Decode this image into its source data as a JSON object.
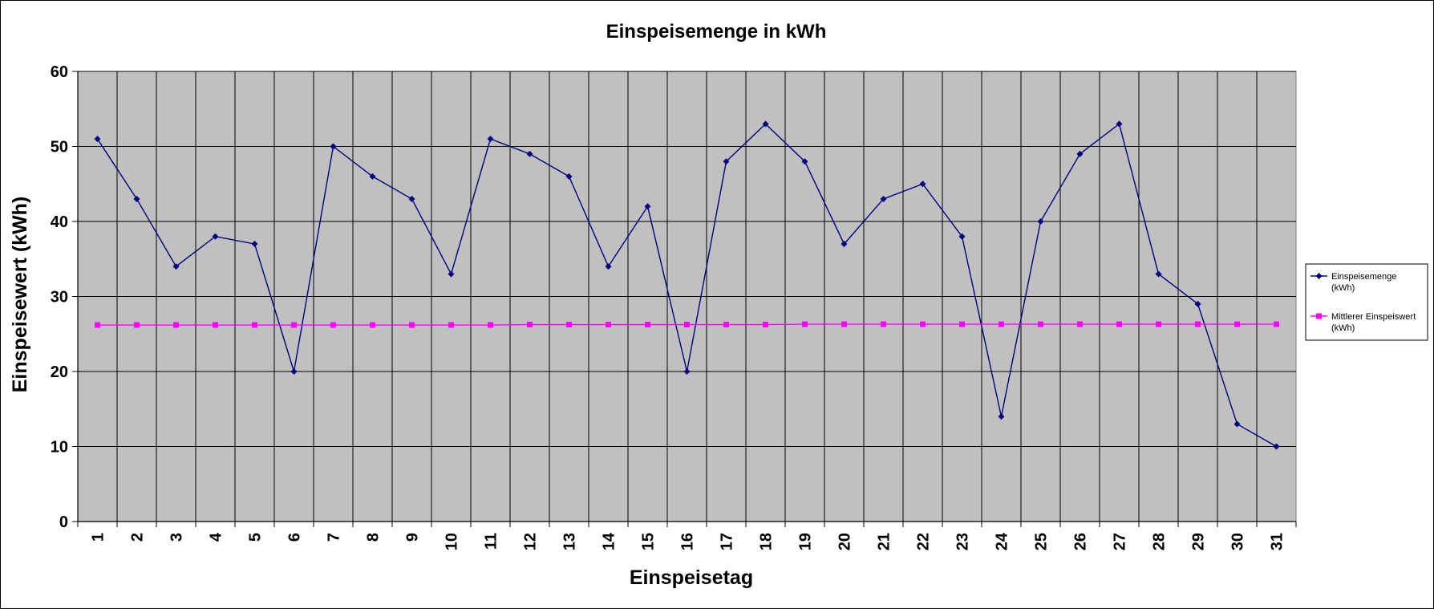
{
  "chart_data": {
    "type": "line",
    "title": "Einspeisemenge in kWh",
    "xlabel": "Einspeisetag",
    "ylabel": "Einspeisewert  (kWh)",
    "x": [
      1,
      2,
      3,
      4,
      5,
      6,
      7,
      8,
      9,
      10,
      11,
      12,
      13,
      14,
      15,
      16,
      17,
      18,
      19,
      20,
      21,
      22,
      23,
      24,
      25,
      26,
      27,
      28,
      29,
      30,
      31
    ],
    "ylim": [
      0,
      60
    ],
    "yticks": [
      0,
      10,
      20,
      30,
      40,
      50,
      60
    ],
    "grid": true,
    "legend_position": "right",
    "plot_background": "#c0c0c0",
    "series": [
      {
        "name_lines": [
          "Einspeisemenge",
          "(kWh)"
        ],
        "color": "#000080",
        "marker": "diamond",
        "values": [
          51,
          43,
          34,
          38,
          37,
          20,
          50,
          46,
          43,
          33,
          51,
          49,
          46,
          34,
          42,
          20,
          48,
          53,
          48,
          37,
          43,
          45,
          38,
          14,
          40,
          49,
          53,
          33,
          29,
          13,
          10
        ]
      },
      {
        "name_lines": [
          "Mittlerer Einspeiswert",
          "(kWh)"
        ],
        "color": "#ff00ff",
        "marker": "square",
        "values": [
          26.2,
          26.2,
          26.2,
          26.2,
          26.2,
          26.2,
          26.2,
          26.2,
          26.2,
          26.2,
          26.2,
          26.25,
          26.25,
          26.25,
          26.25,
          26.25,
          26.25,
          26.25,
          26.3,
          26.3,
          26.3,
          26.3,
          26.3,
          26.3,
          26.3,
          26.3,
          26.3,
          26.3,
          26.3,
          26.3,
          26.3
        ]
      }
    ]
  }
}
